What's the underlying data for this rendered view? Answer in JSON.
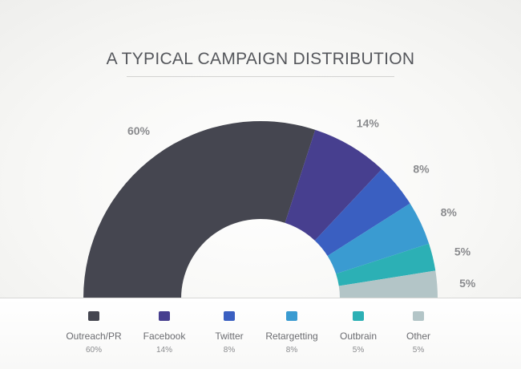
{
  "title": "A TYPICAL CAMPAIGN DISTRIBUTION",
  "chart_data": {
    "type": "pie",
    "style": "semicircle-donut",
    "categories": [
      "Outreach/PR",
      "Facebook",
      "Twitter",
      "Retargetting",
      "Outbrain",
      "Other"
    ],
    "values": [
      60,
      14,
      8,
      8,
      5,
      5
    ],
    "labels": [
      "60%",
      "14%",
      "8%",
      "8%",
      "5%",
      "5%"
    ],
    "colors": [
      "#454650",
      "#473f8f",
      "#3a5fc1",
      "#3a9bd1",
      "#2cb0b5",
      "#b3c5c7"
    ],
    "legend_placement": "bottom"
  },
  "legend": [
    {
      "label": "Outreach/PR",
      "value": "60%"
    },
    {
      "label": "Facebook",
      "value": "14%"
    },
    {
      "label": "Twitter",
      "value": "8%"
    },
    {
      "label": "Retargetting",
      "value": "8%"
    },
    {
      "label": "Outbrain",
      "value": "5%"
    },
    {
      "label": "Other",
      "value": "5%"
    }
  ]
}
